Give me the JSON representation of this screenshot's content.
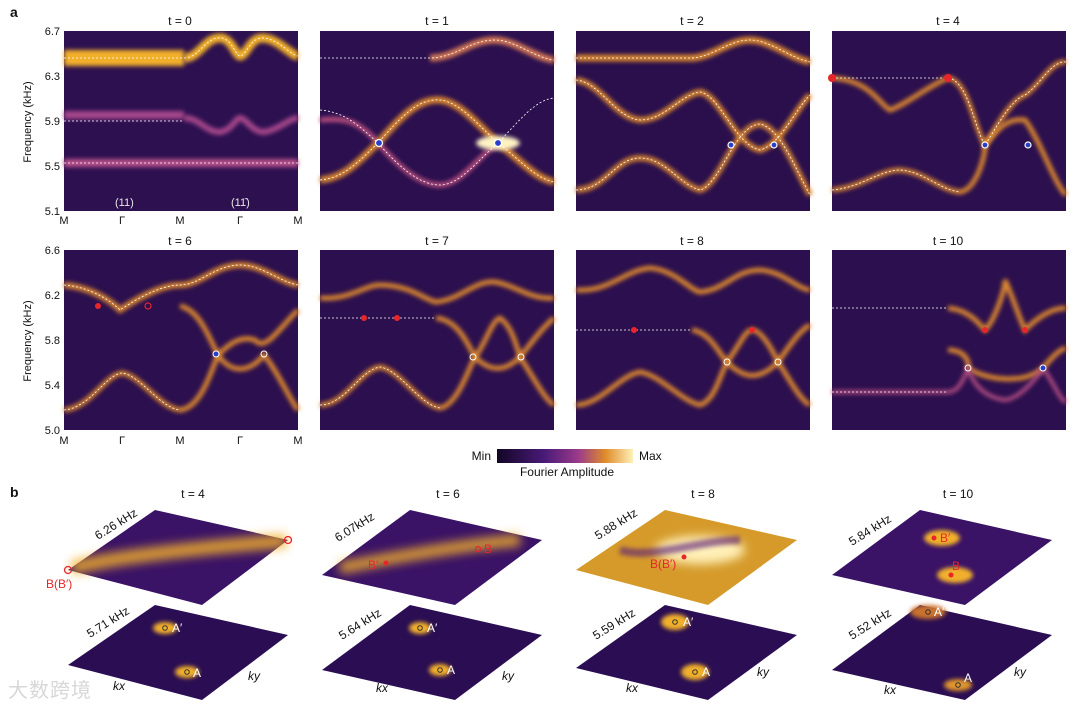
{
  "figure": {
    "panel_a_letter": "a",
    "panel_b_letter": "b",
    "ylabel": "Frequency (kHz)",
    "row1_yticks": [
      "6.7",
      "6.3",
      "5.9",
      "5.5",
      "5.1"
    ],
    "row2_yticks": [
      "6.6",
      "6.2",
      "5.8",
      "5.4",
      "5.0"
    ],
    "xticks": [
      "M",
      "Γ",
      "M",
      "Γ",
      "M"
    ],
    "dir_label_1": "(11)",
    "dir_label_2": "(11̄)",
    "row1_titles": [
      "t = 0",
      "t = 1",
      "t = 2",
      "t = 4"
    ],
    "row2_titles": [
      "t = 6",
      "t = 7",
      "t = 8",
      "t = 10"
    ],
    "colorbar": {
      "min": "Min",
      "max": "Max",
      "label": "Fourier Amplitude"
    },
    "b_titles": [
      "t = 4",
      "t = 6",
      "t = 8",
      "t = 10"
    ],
    "b_upper_freqs": [
      "6.26 kHz",
      "6.07kHz",
      "5.88 kHz",
      "5.84 kHz"
    ],
    "b_lower_freqs": [
      "5.71 kHz",
      "5.64 kHz",
      "5.59 kHz",
      "5.52 kHz"
    ],
    "b_upper_labels": [
      [
        "B(B′)"
      ],
      [
        "B′",
        "B"
      ],
      [
        "B(B′)"
      ],
      [
        "B′",
        "B"
      ]
    ],
    "b_lower_labels": [
      "A′",
      "A"
    ],
    "kx": "kx",
    "ky": "ky",
    "watermark": "大数跨境",
    "colors": {
      "dark": "#2a0f4a",
      "mid": "#6a2590",
      "bright": "#f3b529",
      "peak": "#fff6d0",
      "red_marker": "#e8262a",
      "blue_marker": "#2a3fc8"
    }
  }
}
